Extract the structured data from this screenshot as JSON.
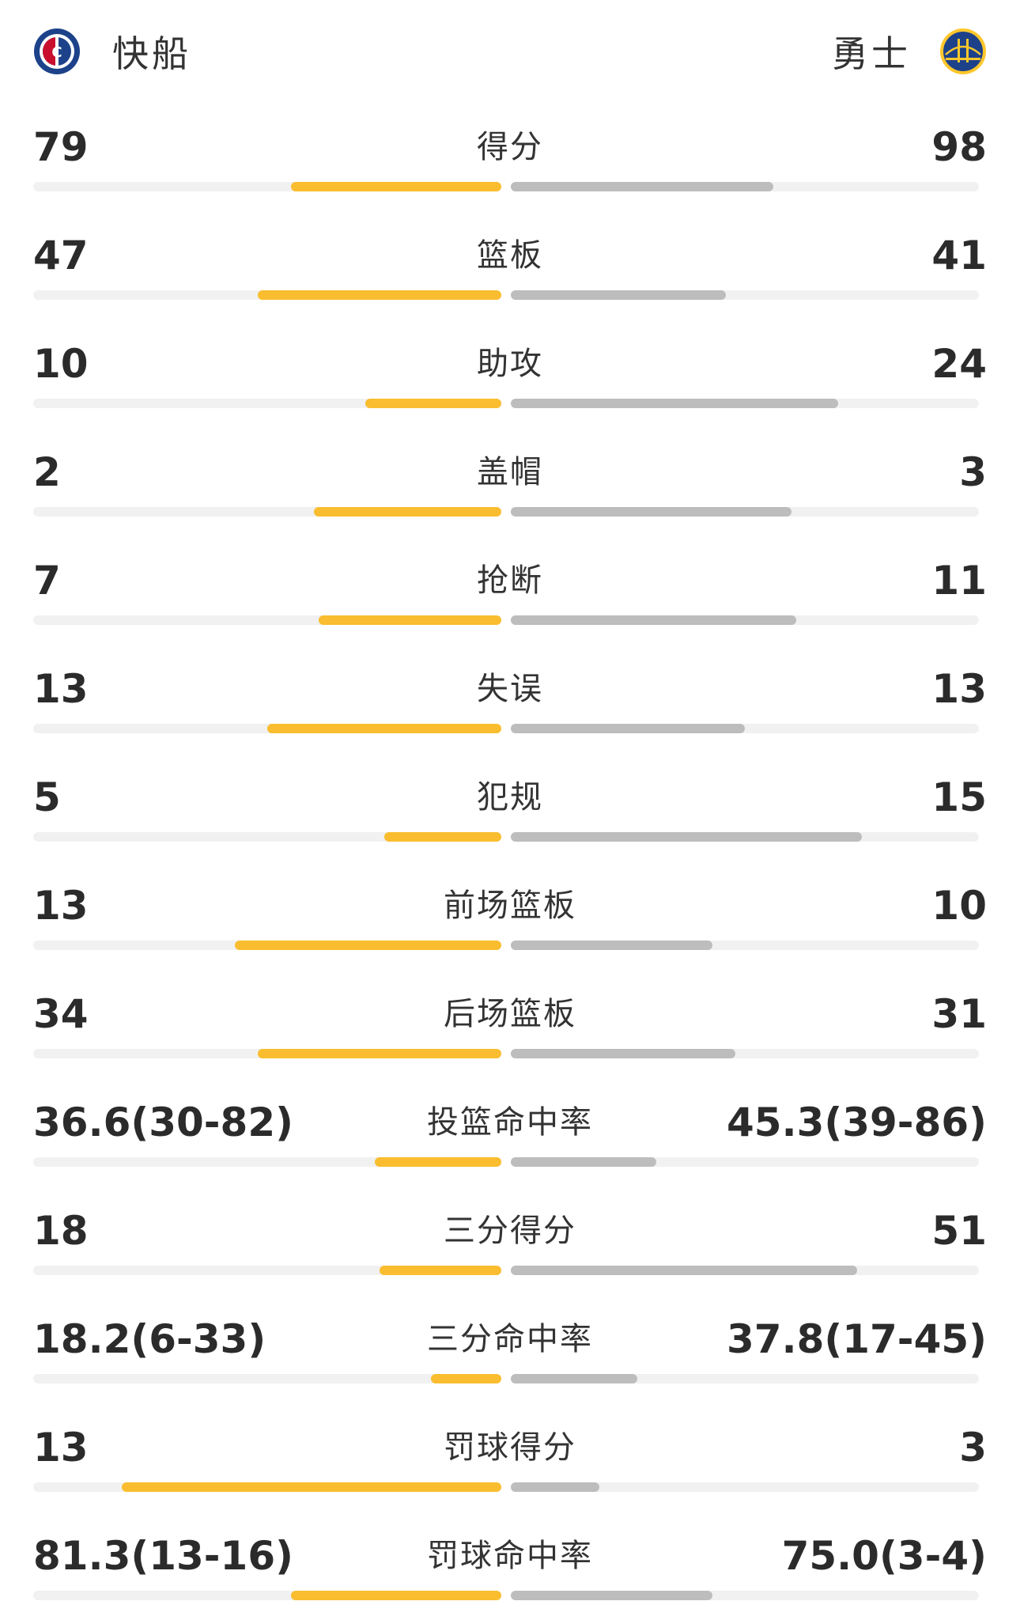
{
  "header": {
    "home": {
      "name": "快船",
      "logo": "clippers-logo-icon"
    },
    "away": {
      "name": "勇士",
      "logo": "warriors-logo-icon"
    }
  },
  "colors": {
    "home_bar": "#f9bd2f",
    "away_bar": "#bdbdbd",
    "track": "#f1f1f1"
  },
  "stats": [
    {
      "label": "得分",
      "home": "79",
      "away": "98",
      "home_share": 0.45,
      "away_share": 0.56
    },
    {
      "label": "篮板",
      "home": "47",
      "away": "41",
      "home_share": 0.52,
      "away_share": 0.46
    },
    {
      "label": "助攻",
      "home": "10",
      "away": "24",
      "home_share": 0.29,
      "away_share": 0.7
    },
    {
      "label": "盖帽",
      "home": "2",
      "away": "3",
      "home_share": 0.4,
      "away_share": 0.6
    },
    {
      "label": "抢断",
      "home": "7",
      "away": "11",
      "home_share": 0.39,
      "away_share": 0.61
    },
    {
      "label": "失误",
      "home": "13",
      "away": "13",
      "home_share": 0.5,
      "away_share": 0.5
    },
    {
      "label": "犯规",
      "home": "5",
      "away": "15",
      "home_share": 0.25,
      "away_share": 0.75
    },
    {
      "label": "前场篮板",
      "home": "13",
      "away": "10",
      "home_share": 0.57,
      "away_share": 0.43
    },
    {
      "label": "后场篮板",
      "home": "34",
      "away": "31",
      "home_share": 0.52,
      "away_share": 0.48
    },
    {
      "label": "投篮命中率",
      "home": "36.6(30-82)",
      "away": "45.3(39-86)",
      "home_share": 0.27,
      "away_share": 0.31
    },
    {
      "label": "三分得分",
      "home": "18",
      "away": "51",
      "home_share": 0.26,
      "away_share": 0.74
    },
    {
      "label": "三分命中率",
      "home": "18.2(6-33)",
      "away": "37.8(17-45)",
      "home_share": 0.15,
      "away_share": 0.27
    },
    {
      "label": "罚球得分",
      "home": "13",
      "away": "3",
      "home_share": 0.81,
      "away_share": 0.19
    },
    {
      "label": "罚球命中率",
      "home": "81.3(13-16)",
      "away": "75.0(3-4)",
      "home_share": 0.45,
      "away_share": 0.43
    }
  ]
}
